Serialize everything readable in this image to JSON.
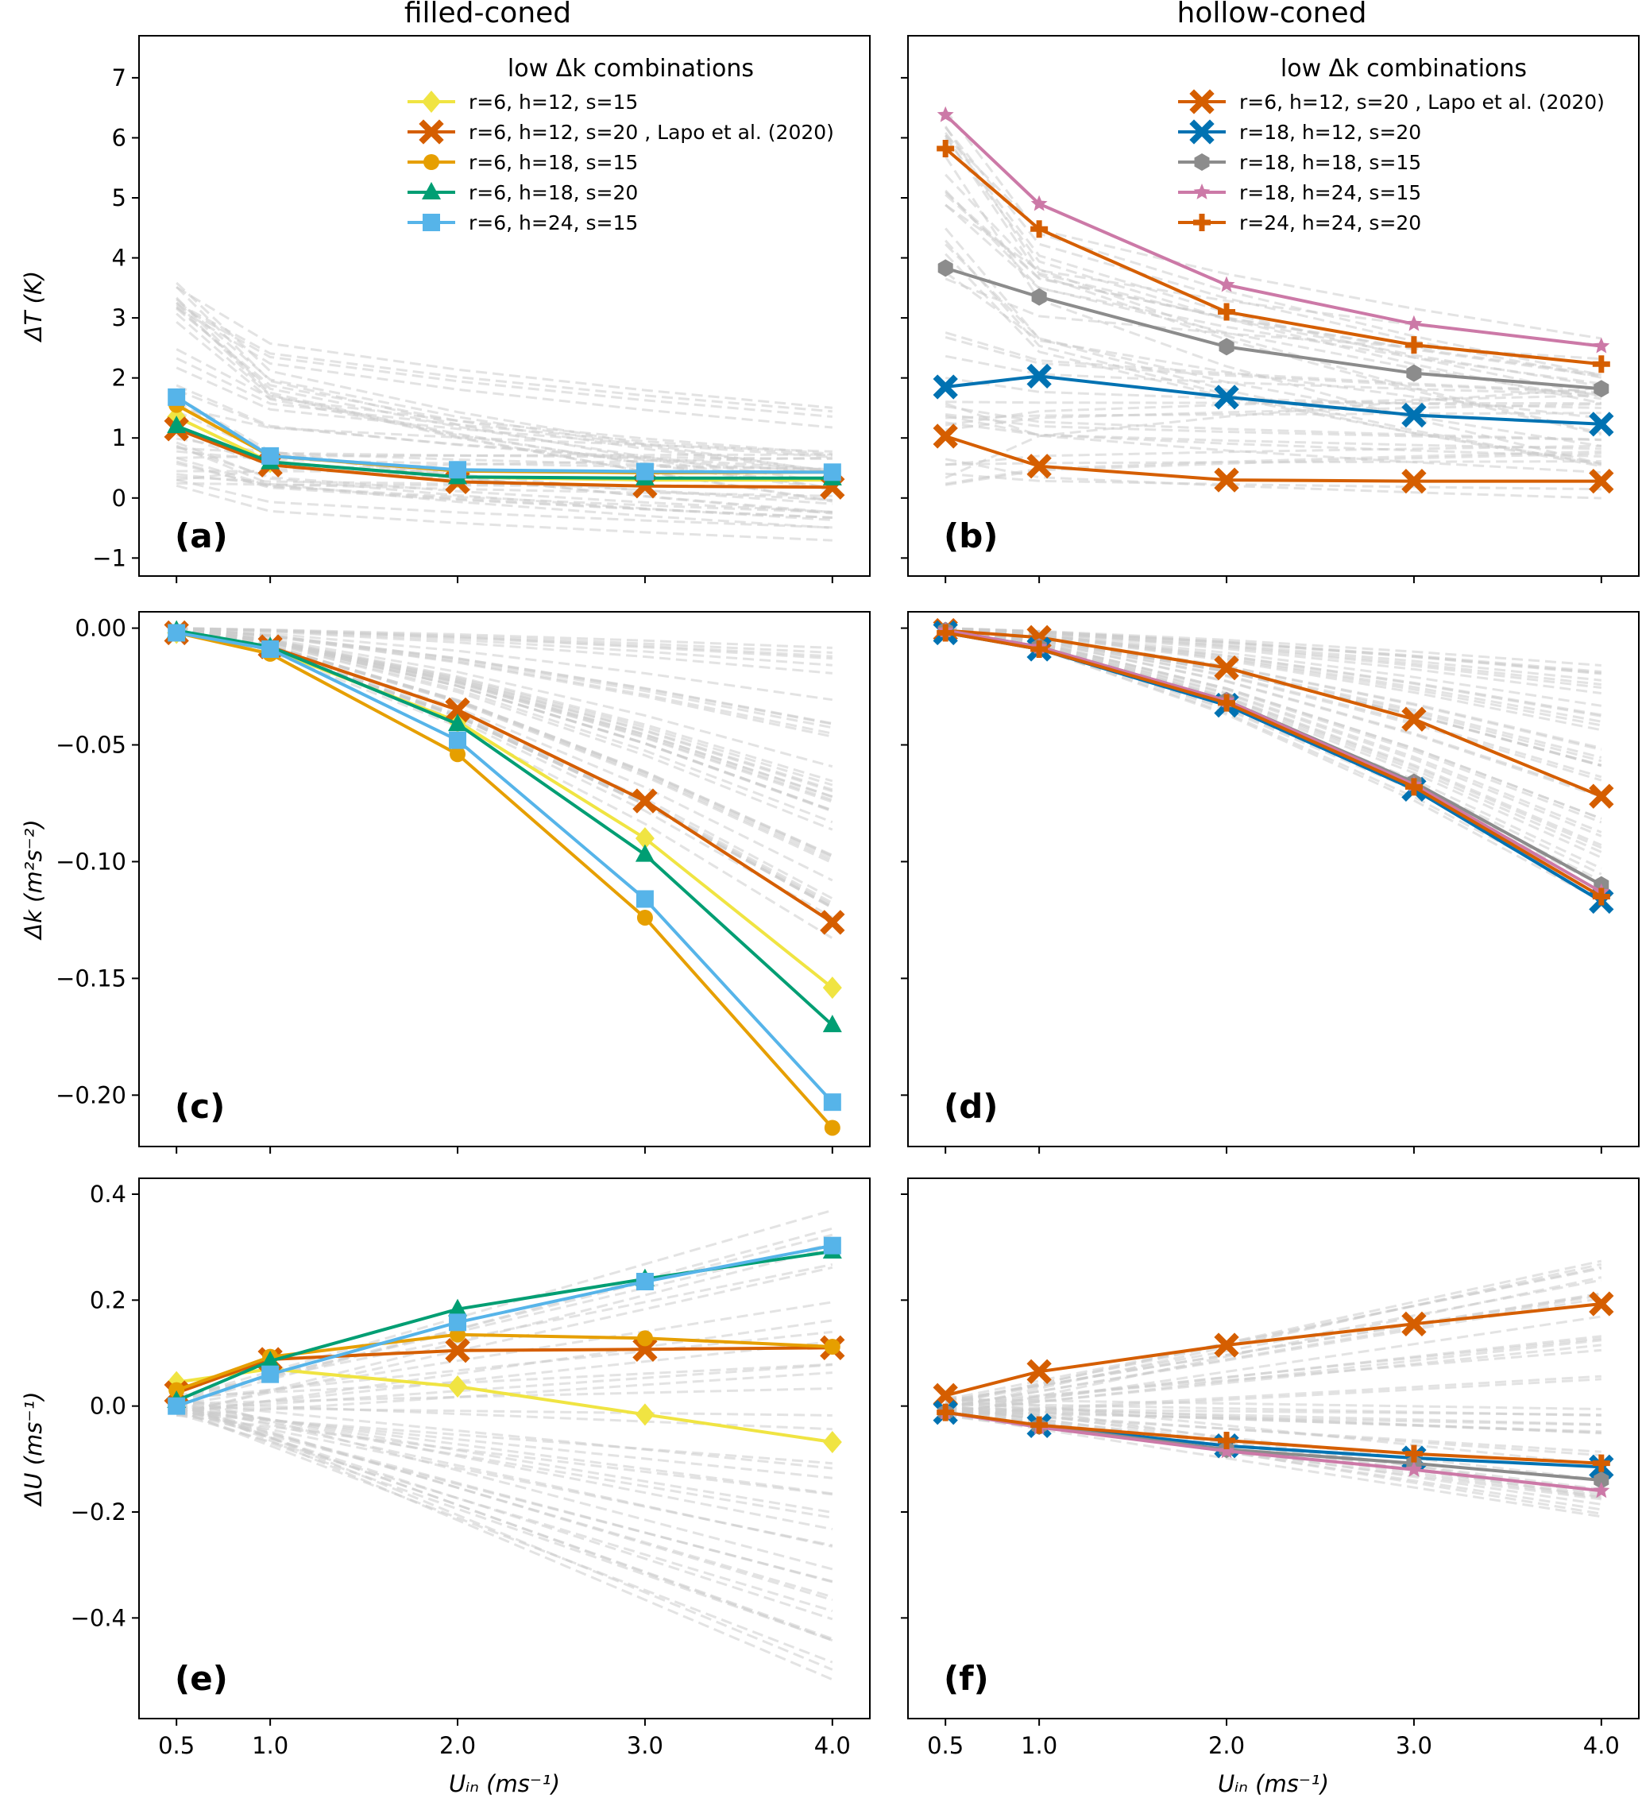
{
  "colors": {
    "yellow": "#f0e442",
    "vermillion": "#d55e00",
    "orange": "#e69f00",
    "green": "#009e73",
    "skyblue": "#56b4e9",
    "blue": "#0072b2",
    "gray": "#8c8c8c",
    "pink": "#cc79a7",
    "background_lines": "#cccccc"
  },
  "chart_data": [
    {
      "type": "line",
      "panel": "(a)",
      "column_title": "filled-coned",
      "ylabel": "ΔT (K)",
      "xlabel": "",
      "x": [
        0.5,
        1.0,
        2.0,
        3.0,
        4.0
      ],
      "ylim": [
        -1.3,
        7.7
      ],
      "yticks": [
        -1,
        0,
        1,
        2,
        3,
        4,
        5,
        6,
        7
      ],
      "legend_title": "low Δk combinations",
      "legend": "top-right",
      "series": [
        {
          "name": "r=6, h=12, s=15",
          "color": "yellow",
          "marker": "diamond",
          "values": [
            1.35,
            0.6,
            0.35,
            0.3,
            0.3
          ]
        },
        {
          "name": "r=6, h=12, s=20 , Lapo et al. (2020)",
          "color": "vermillion",
          "marker": "x",
          "values": [
            1.15,
            0.55,
            0.27,
            0.2,
            0.18
          ]
        },
        {
          "name": "r=6, h=18, s=15",
          "color": "orange",
          "marker": "circle",
          "values": [
            1.55,
            0.7,
            0.45,
            0.42,
            0.43
          ]
        },
        {
          "name": "r=6, h=18, s=20",
          "color": "green",
          "marker": "triangle",
          "values": [
            1.2,
            0.6,
            0.35,
            0.33,
            0.33
          ]
        },
        {
          "name": "r=6, h=24, s=15",
          "color": "skyblue",
          "marker": "square",
          "values": [
            1.68,
            0.7,
            0.47,
            0.44,
            0.43
          ]
        }
      ]
    },
    {
      "type": "line",
      "panel": "(b)",
      "column_title": "hollow-coned",
      "ylabel": "",
      "xlabel": "",
      "x": [
        0.5,
        1.0,
        2.0,
        3.0,
        4.0
      ],
      "ylim": [
        -1.3,
        7.7
      ],
      "yticks": [
        -1,
        0,
        1,
        2,
        3,
        4,
        5,
        6,
        7
      ],
      "legend_title": "low Δk combinations",
      "legend": "top-right",
      "series": [
        {
          "name": "r=6, h=12, s=20 , Lapo et al. (2020)",
          "color": "vermillion",
          "marker": "x",
          "values": [
            1.03,
            0.53,
            0.3,
            0.28,
            0.28
          ]
        },
        {
          "name": "r=18, h=12, s=20",
          "color": "blue",
          "marker": "x",
          "values": [
            1.85,
            2.03,
            1.68,
            1.38,
            1.23
          ]
        },
        {
          "name": "r=18, h=18, s=15",
          "color": "gray",
          "marker": "hexagon",
          "values": [
            3.83,
            3.35,
            2.52,
            2.08,
            1.82
          ]
        },
        {
          "name": "r=18, h=24, s=15",
          "color": "pink",
          "marker": "star",
          "values": [
            6.38,
            4.9,
            3.55,
            2.9,
            2.53
          ]
        },
        {
          "name": "r=24, h=24, s=20",
          "color": "vermillion",
          "marker": "plus",
          "values": [
            5.82,
            4.48,
            3.1,
            2.55,
            2.23
          ]
        }
      ]
    },
    {
      "type": "line",
      "panel": "(c)",
      "ylabel": "Δk (m²s⁻²)",
      "xlabel": "",
      "x": [
        0.5,
        1.0,
        2.0,
        3.0,
        4.0
      ],
      "ylim": [
        -0.222,
        0.007
      ],
      "yticks": [
        0.0,
        -0.05,
        -0.1,
        -0.15,
        -0.2
      ],
      "ytick_labels": [
        "0.00",
        "−0.05",
        "−0.10",
        "−0.15",
        "−0.20"
      ],
      "series": [
        {
          "name": "r=6, h=12, s=15",
          "color": "yellow",
          "marker": "diamond",
          "values": [
            -0.002,
            -0.009,
            -0.04,
            -0.09,
            -0.154
          ]
        },
        {
          "name": "r=6, h=12, s=20 , Lapo et al. (2020)",
          "color": "vermillion",
          "marker": "x",
          "values": [
            -0.002,
            -0.008,
            -0.035,
            -0.074,
            -0.126
          ]
        },
        {
          "name": "r=6, h=18, s=15",
          "color": "orange",
          "marker": "circle",
          "values": [
            -0.002,
            -0.011,
            -0.054,
            -0.124,
            -0.214
          ]
        },
        {
          "name": "r=6, h=18, s=20",
          "color": "green",
          "marker": "triangle",
          "values": [
            -0.001,
            -0.008,
            -0.041,
            -0.097,
            -0.17
          ]
        },
        {
          "name": "r=6, h=24, s=15",
          "color": "skyblue",
          "marker": "square",
          "values": [
            -0.002,
            -0.009,
            -0.048,
            -0.116,
            -0.203
          ]
        }
      ]
    },
    {
      "type": "line",
      "panel": "(d)",
      "ylabel": "",
      "xlabel": "",
      "x": [
        0.5,
        1.0,
        2.0,
        3.0,
        4.0
      ],
      "ylim": [
        -0.222,
        0.007
      ],
      "yticks": [
        0.0,
        -0.05,
        -0.1,
        -0.15,
        -0.2
      ],
      "series": [
        {
          "name": "r=6, h=12, s=20 , Lapo et al. (2020)",
          "color": "vermillion",
          "marker": "x",
          "values": [
            -0.001,
            -0.004,
            -0.017,
            -0.039,
            -0.072
          ]
        },
        {
          "name": "r=18, h=12, s=20",
          "color": "blue",
          "marker": "x",
          "values": [
            -0.002,
            -0.009,
            -0.033,
            -0.069,
            -0.117
          ]
        },
        {
          "name": "r=18, h=18, s=15",
          "color": "gray",
          "marker": "hexagon",
          "values": [
            -0.001,
            -0.008,
            -0.031,
            -0.066,
            -0.11
          ]
        },
        {
          "name": "r=18, h=24, s=15",
          "color": "pink",
          "marker": "star",
          "values": [
            -0.001,
            -0.008,
            -0.031,
            -0.067,
            -0.113
          ]
        },
        {
          "name": "r=24, h=24, s=20",
          "color": "vermillion",
          "marker": "plus",
          "values": [
            -0.002,
            -0.009,
            -0.032,
            -0.068,
            -0.115
          ]
        }
      ]
    },
    {
      "type": "line",
      "panel": "(e)",
      "ylabel": "ΔU (ms⁻¹)",
      "xlabel": "U_in (ms⁻¹)",
      "x": [
        0.5,
        1.0,
        2.0,
        3.0,
        4.0
      ],
      "ylim": [
        -0.59,
        0.43
      ],
      "yticks": [
        -0.4,
        -0.2,
        0.0,
        0.2,
        0.4
      ],
      "xticks": [
        "0.5",
        "1.0",
        "2.0",
        "3.0",
        "4.0"
      ],
      "series": [
        {
          "name": "r=6, h=12, s=15",
          "color": "yellow",
          "marker": "diamond",
          "values": [
            0.045,
            0.07,
            0.037,
            -0.016,
            -0.068
          ]
        },
        {
          "name": "r=6, h=12, s=20 , Lapo et al. (2020)",
          "color": "vermillion",
          "marker": "x",
          "values": [
            0.025,
            0.088,
            0.105,
            0.107,
            0.11
          ]
        },
        {
          "name": "r=6, h=18, s=15",
          "color": "orange",
          "marker": "circle",
          "values": [
            0.03,
            0.093,
            0.135,
            0.128,
            0.112
          ]
        },
        {
          "name": "r=6, h=18, s=20",
          "color": "green",
          "marker": "triangle",
          "values": [
            0.01,
            0.085,
            0.183,
            0.24,
            0.292
          ]
        },
        {
          "name": "r=6, h=24, s=15",
          "color": "skyblue",
          "marker": "square",
          "values": [
            0.0,
            0.06,
            0.158,
            0.235,
            0.303
          ]
        }
      ]
    },
    {
      "type": "line",
      "panel": "(f)",
      "ylabel": "",
      "xlabel": "U_in (ms⁻¹)",
      "x": [
        0.5,
        1.0,
        2.0,
        3.0,
        4.0
      ],
      "ylim": [
        -0.59,
        0.43
      ],
      "yticks": [
        -0.4,
        -0.2,
        0.0,
        0.2,
        0.4
      ],
      "xticks": [
        "0.5",
        "1.0",
        "2.0",
        "3.0",
        "4.0"
      ],
      "series": [
        {
          "name": "r=6, h=12, s=20 , Lapo et al. (2020)",
          "color": "vermillion",
          "marker": "x",
          "values": [
            0.02,
            0.065,
            0.115,
            0.155,
            0.193
          ]
        },
        {
          "name": "r=18, h=12, s=20",
          "color": "blue",
          "marker": "x",
          "values": [
            -0.012,
            -0.037,
            -0.075,
            -0.098,
            -0.115
          ]
        },
        {
          "name": "r=18, h=18, s=15",
          "color": "gray",
          "marker": "hexagon",
          "values": [
            -0.012,
            -0.038,
            -0.082,
            -0.108,
            -0.14
          ]
        },
        {
          "name": "r=18, h=24, s=15",
          "color": "pink",
          "marker": "star",
          "values": [
            -0.012,
            -0.04,
            -0.085,
            -0.12,
            -0.16
          ]
        },
        {
          "name": "r=24, h=24, s=20",
          "color": "vermillion",
          "marker": "plus",
          "values": [
            -0.012,
            -0.036,
            -0.065,
            -0.09,
            -0.108
          ]
        }
      ]
    }
  ],
  "background_runs": {
    "description_visible": false,
    "count": 40,
    "T": {
      "min_start": 0.2,
      "max_start": 3.6,
      "min_end": -0.8,
      "max_end": 1.6
    },
    "T_hollow": {
      "min_start": 0.2,
      "max_start": 7.2,
      "min_end": -0.2,
      "max_end": 2.8
    },
    "k": {
      "min_end": -0.005,
      "max_end": -0.13
    },
    "k_hollow": {
      "min_end": -0.015,
      "max_end": -0.118
    },
    "U": {
      "min_end": -0.55,
      "max_end": 0.38
    },
    "U_hollow": {
      "min_end": -0.21,
      "max_end": 0.28
    }
  }
}
